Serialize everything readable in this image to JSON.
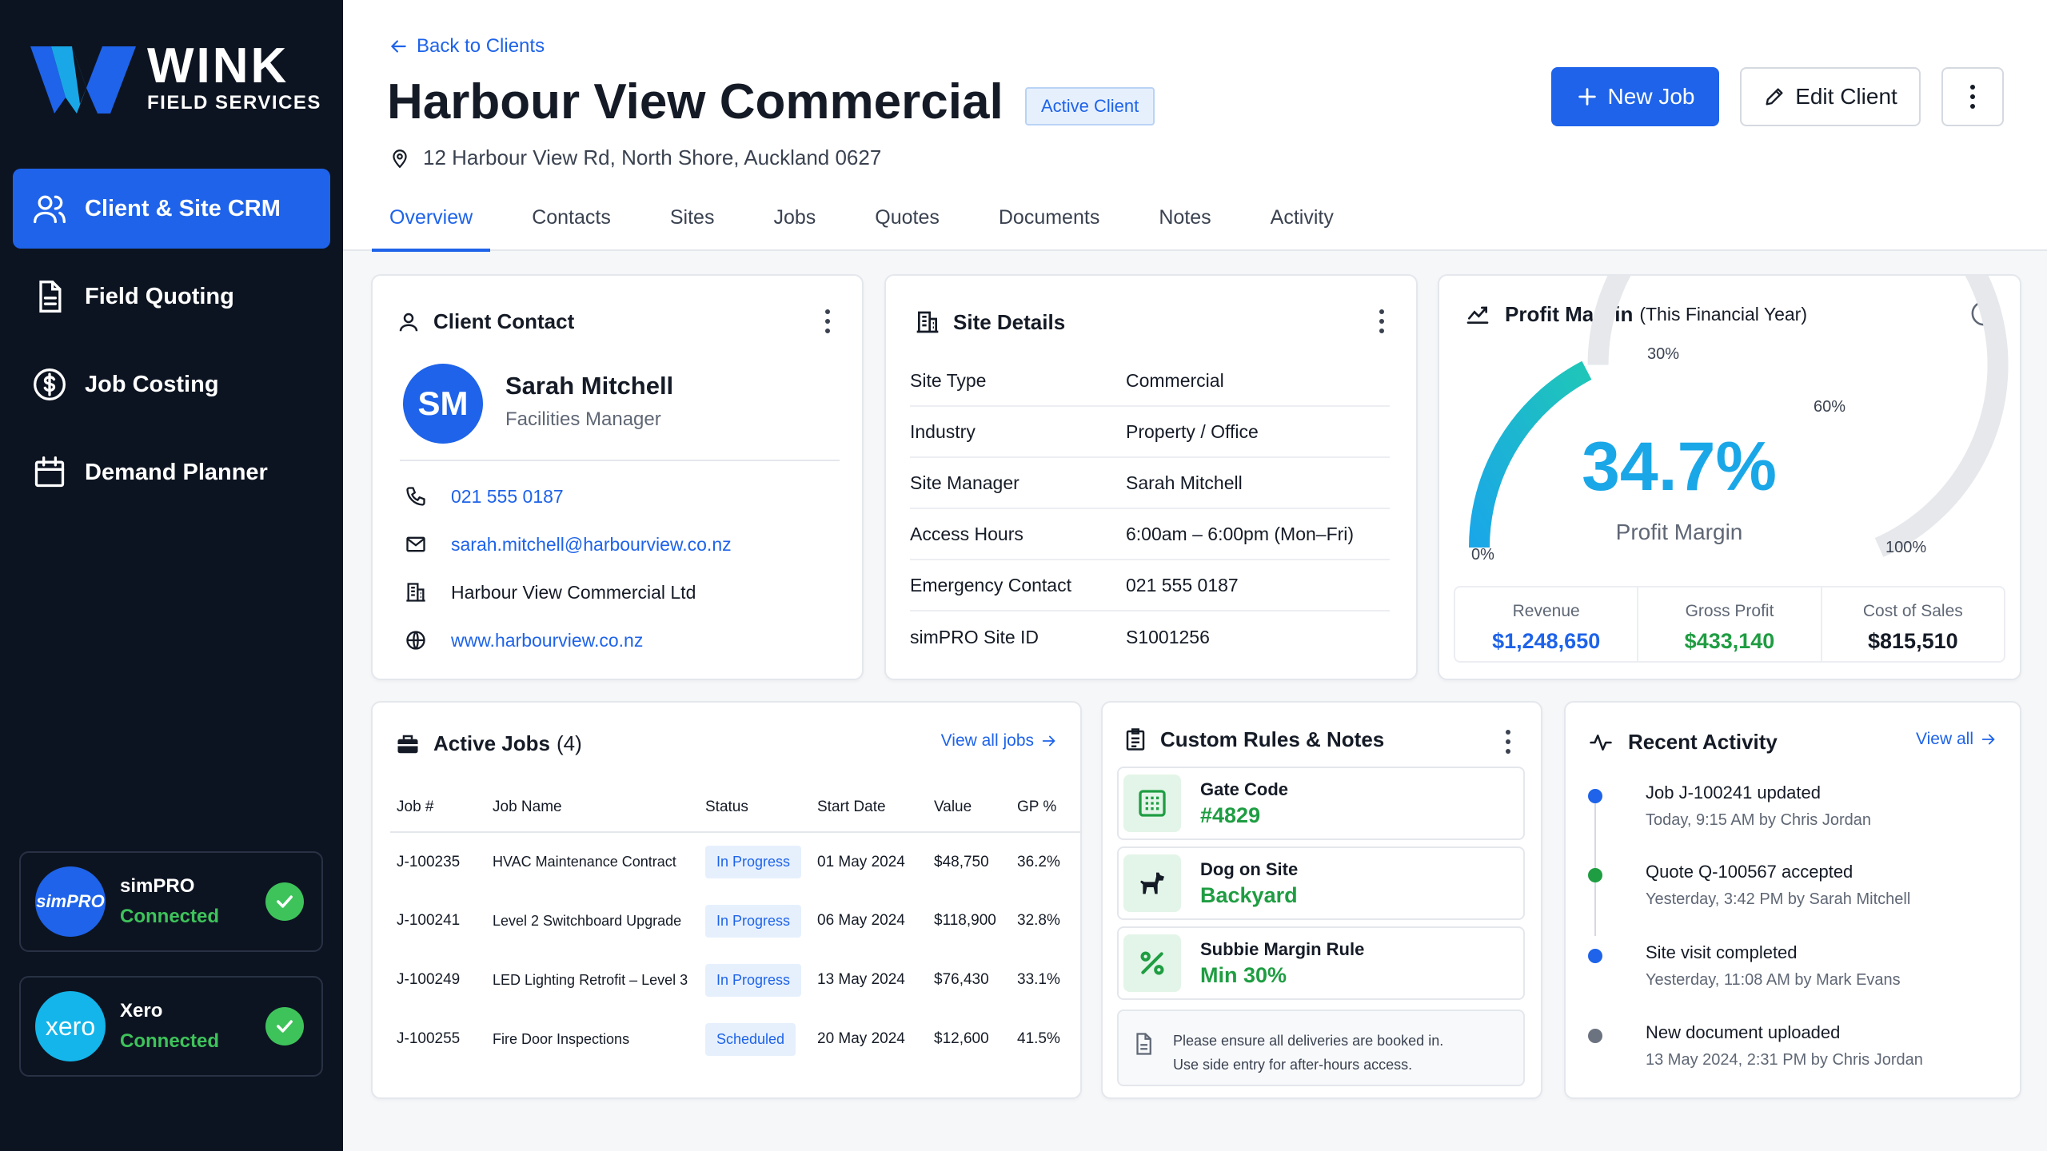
{
  "brand": {
    "name": "WINK",
    "subtitle": "FIELD SERVICES"
  },
  "sidebar": {
    "items": [
      {
        "label": "Client & Site CRM",
        "icon": "users-icon",
        "active": true
      },
      {
        "label": "Field Quoting",
        "icon": "document-icon",
        "active": false
      },
      {
        "label": "Job Costing",
        "icon": "dollar-circle-icon",
        "active": false
      },
      {
        "label": "Demand Planner",
        "icon": "calendar-icon",
        "active": false
      }
    ],
    "integrations": [
      {
        "name": "simPRO",
        "status": "Connected",
        "logo_text": "simPRO",
        "color": "#1e63e9"
      },
      {
        "name": "Xero",
        "status": "Connected",
        "logo_text": "xero",
        "color": "#13b5ea"
      }
    ]
  },
  "header": {
    "back_label": "Back to Clients",
    "title": "Harbour View Commercial",
    "badge": "Active Client",
    "address": "12 Harbour View Rd, North Shore, Auckland 0627",
    "new_job_label": "New Job",
    "edit_client_label": "Edit Client",
    "tabs": [
      "Overview",
      "Contacts",
      "Sites",
      "Jobs",
      "Quotes",
      "Documents",
      "Notes",
      "Activity"
    ],
    "active_tab": "Overview"
  },
  "client_contact": {
    "title": "Client Contact",
    "initials": "SM",
    "name": "Sarah Mitchell",
    "role": "Facilities Manager",
    "phone": "021 555 0187",
    "email": "sarah.mitchell@harbourview.co.nz",
    "company": "Harbour View Commercial Ltd",
    "website": "www.harbourview.co.nz"
  },
  "site_details": {
    "title": "Site Details",
    "rows": [
      {
        "key": "Site Type",
        "value": "Commercial"
      },
      {
        "key": "Industry",
        "value": "Property / Office"
      },
      {
        "key": "Site Manager",
        "value": "Sarah Mitchell"
      },
      {
        "key": "Access Hours",
        "value": "6:00am – 6:00pm (Mon–Fri)"
      },
      {
        "key": "Emergency Contact",
        "value": "021 555 0187"
      },
      {
        "key": "simPRO Site ID",
        "value": "S1001256"
      }
    ]
  },
  "profit_margin": {
    "title": "Profit Margin",
    "period": "(This Financial Year)",
    "value_text": "34.7%",
    "value": 34.7,
    "label": "Profit Margin",
    "tick_0": "0%",
    "tick_30": "30%",
    "tick_60": "60%",
    "tick_100": "100%",
    "stats": [
      {
        "label": "Revenue",
        "value": "$1,248,650",
        "color": "#1e63e9"
      },
      {
        "label": "Gross Profit",
        "value": "$433,140",
        "color": "#1f9d42"
      },
      {
        "label": "Cost of Sales",
        "value": "$815,510",
        "color": "#151b26"
      }
    ]
  },
  "active_jobs": {
    "title": "Active Jobs",
    "count": "(4)",
    "view_all": "View all jobs",
    "columns": [
      "Job #",
      "Job Name",
      "Status",
      "Start Date",
      "Value",
      "GP %"
    ],
    "rows": [
      {
        "job": "J-100235",
        "name": "HVAC Maintenance Contract",
        "status": "In Progress",
        "start": "01 May 2024",
        "value": "$48,750",
        "gp": "36.2%"
      },
      {
        "job": "J-100241",
        "name": "Level 2 Switchboard Upgrade",
        "status": "In Progress",
        "start": "06 May 2024",
        "value": "$118,900",
        "gp": "32.8%"
      },
      {
        "job": "J-100249",
        "name": "LED Lighting Retrofit – Level 3",
        "status": "In Progress",
        "start": "13 May 2024",
        "value": "$76,430",
        "gp": "33.1%"
      },
      {
        "job": "J-100255",
        "name": "Fire Door Inspections",
        "status": "Scheduled",
        "start": "20 May 2024",
        "value": "$12,600",
        "gp": "41.5%"
      }
    ]
  },
  "custom_rules": {
    "title": "Custom Rules & Notes",
    "rules": [
      {
        "label": "Gate Code",
        "value": "#4829",
        "icon": "keypad-icon"
      },
      {
        "label": "Dog on Site",
        "value": "Backyard",
        "icon": "dog-icon"
      },
      {
        "label": "Subbie Margin Rule",
        "value": "Min 30%",
        "icon": "percent-icon"
      }
    ],
    "note_line1": "Please ensure all deliveries are booked in.",
    "note_line2": "Use side entry for after-hours access."
  },
  "recent_activity": {
    "title": "Recent Activity",
    "view_all": "View all",
    "items": [
      {
        "title": "Job J-100241 updated",
        "sub": "Today, 9:15 AM by Chris Jordan",
        "color": "#1e63e9"
      },
      {
        "title": "Quote Q-100567 accepted",
        "sub": "Yesterday, 3:42 PM by Sarah Mitchell",
        "color": "#1f9d42"
      },
      {
        "title": "Site visit completed",
        "sub": "Yesterday, 11:08 AM by Mark Evans",
        "color": "#1e63e9"
      },
      {
        "title": "New document uploaded",
        "sub": "13 May 2024, 2:31 PM by Chris Jordan",
        "color": "#6b7280"
      }
    ]
  }
}
